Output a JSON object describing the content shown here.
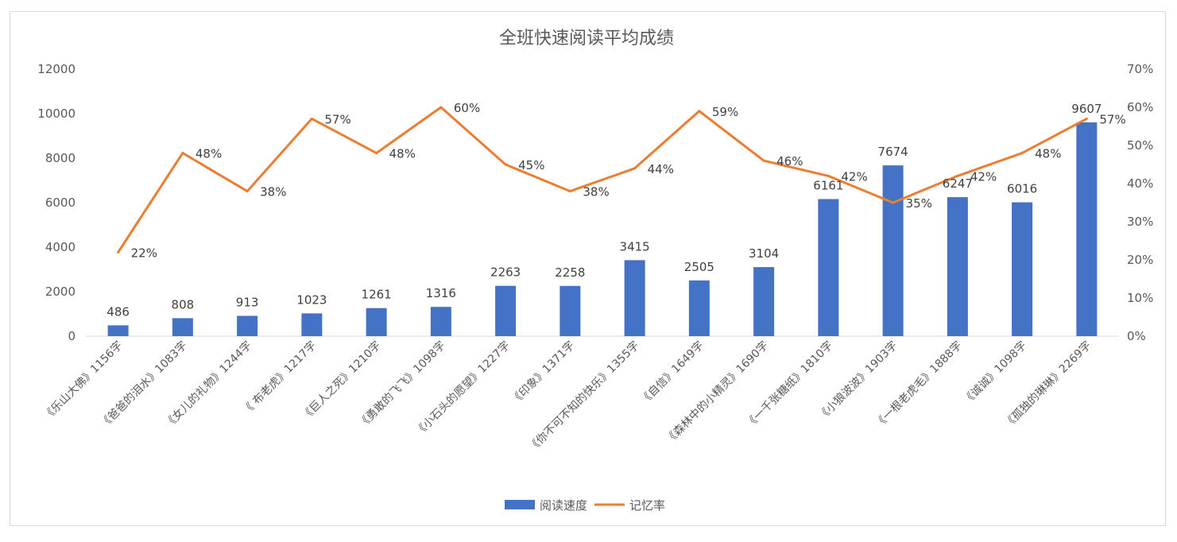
{
  "chart_data": {
    "type": "bar",
    "title": "全班快速阅读平均成绩",
    "categories": [
      "《乐山大佛》1156字",
      "《爸爸的泪水》1083字",
      "《女儿的礼物》1244字",
      "《 布老虎》1217字",
      "《巨人之死》1210字",
      "《勇敢的飞飞》1098字",
      "《小石头的愿望》1227字",
      "《印象》1371字",
      "《你不可不知的快乐》1355字",
      "《自信》1649字",
      "《森林中的小精灵》1690字",
      "《一千张糖纸》1810字",
      "《小狼波波》1903字",
      "《一根老虎毛》1888字",
      "《诚诚》1098字",
      "《孤独的琳琳》2269字"
    ],
    "series": [
      {
        "name": "阅读速度",
        "type": "bar",
        "axis": "left",
        "color": "#4472c4",
        "values": [
          486,
          808,
          913,
          1023,
          1261,
          1316,
          2263,
          2258,
          3415,
          2505,
          3104,
          6161,
          7674,
          6247,
          6016,
          9607
        ],
        "labels": [
          "486",
          "808",
          "913",
          "1023",
          "1261",
          "1316",
          "2263",
          "2258",
          "3415",
          "2505",
          "3104",
          "6161",
          "7674",
          "6247",
          "6016",
          "9607"
        ]
      },
      {
        "name": "记忆率",
        "type": "line",
        "axis": "right",
        "color": "#ed7d31",
        "values": [
          22,
          48,
          38,
          57,
          48,
          60,
          45,
          38,
          44,
          59,
          46,
          42,
          35,
          42,
          48,
          57
        ],
        "labels": [
          "22%",
          "48%",
          "38%",
          "57%",
          "48%",
          "60%",
          "45%",
          "38%",
          "44%",
          "59%",
          "46%",
          "42%",
          "35%",
          "42%",
          "48%",
          "57%"
        ]
      }
    ],
    "y_left": {
      "min": 0,
      "max": 12000,
      "ticks": [
        "0",
        "2000",
        "4000",
        "6000",
        "8000",
        "10000",
        "12000"
      ]
    },
    "y_right": {
      "min": 0,
      "max": 70,
      "ticks": [
        "0%",
        "10%",
        "20%",
        "30%",
        "40%",
        "50%",
        "60%",
        "70%"
      ]
    },
    "grid": false,
    "legend_position": "bottom"
  }
}
